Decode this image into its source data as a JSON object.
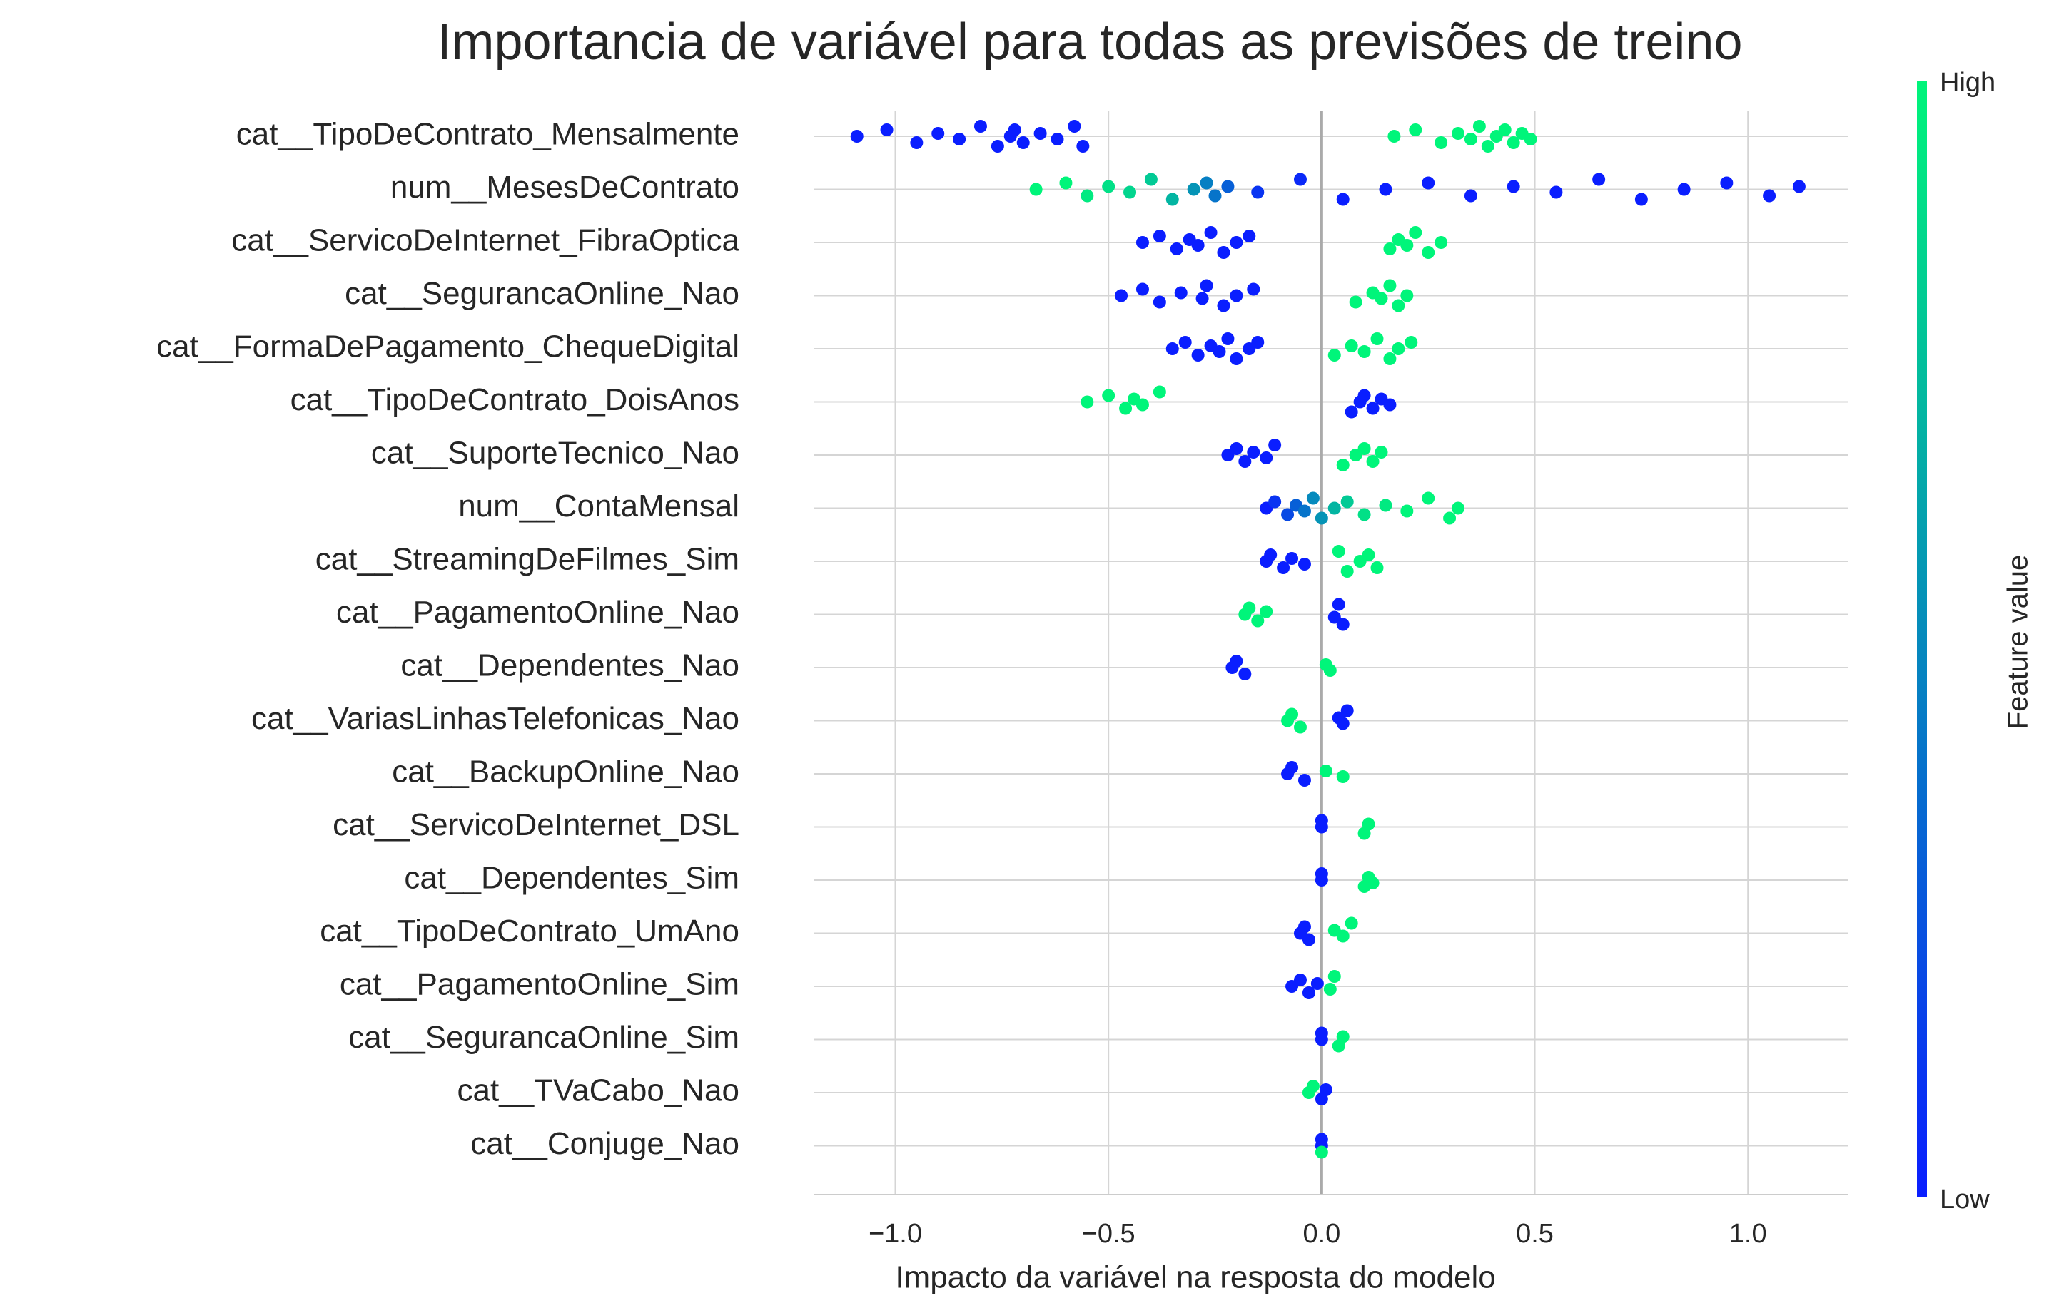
{
  "chart_data": {
    "type": "beeswarm",
    "title": "Importancia de variável para todas as previsões de treino",
    "x_label": "Impacto da variável na resposta do modelo",
    "xlim": [
      -1.19,
      1.234
    ],
    "xticks": [
      {
        "value": -1,
        "label": "−1.0"
      },
      {
        "value": -0.5,
        "label": "−0.5"
      },
      {
        "value": 0,
        "label": "0.0"
      },
      0.5,
      {
        "value": 1,
        "label": "1.0"
      }
    ],
    "grid": true,
    "colorbar": {
      "label": "Feature value",
      "low_label": "Low",
      "high_label": "High",
      "low_color": "#0a1eff",
      "high_color": "#00f57a"
    },
    "features": [
      {
        "name": "cat__TipoDeContrato_Mensalmente",
        "shap": [
          -1.09,
          -1.02,
          -0.95,
          -0.9,
          -0.85,
          -0.8,
          -0.76,
          -0.73,
          -0.72,
          -0.7,
          -0.66,
          -0.62,
          -0.58,
          -0.56,
          0.17,
          0.22,
          0.28,
          0.32,
          0.35,
          0.37,
          0.39,
          0.41,
          0.43,
          0.45,
          0.47,
          0.49
        ],
        "feature_value": [
          0,
          0,
          0,
          0,
          0,
          0,
          0,
          0,
          0,
          0,
          0,
          0,
          0,
          0,
          1,
          1,
          1,
          1,
          1,
          1,
          1,
          1,
          1,
          1,
          1,
          1
        ]
      },
      {
        "name": "num__MesesDeContrato",
        "shap": [
          -0.67,
          -0.6,
          -0.55,
          -0.5,
          -0.45,
          -0.4,
          -0.35,
          -0.3,
          -0.27,
          -0.25,
          -0.22,
          -0.15,
          -0.05,
          0.05,
          0.15,
          0.25,
          0.35,
          0.45,
          0.55,
          0.65,
          0.75,
          0.85,
          0.95,
          1.05,
          1.12
        ],
        "feature_value": [
          1,
          1,
          0.95,
          0.9,
          0.85,
          0.8,
          0.7,
          0.55,
          0.45,
          0.4,
          0.3,
          0.1,
          0.05,
          0,
          0,
          0,
          0,
          0,
          0,
          0,
          0,
          0,
          0,
          0,
          0
        ]
      },
      {
        "name": "cat__ServicoDeInternet_FibraOptica",
        "shap": [
          -0.42,
          -0.38,
          -0.34,
          -0.31,
          -0.29,
          -0.26,
          -0.23,
          -0.2,
          -0.17,
          0.16,
          0.18,
          0.2,
          0.22,
          0.25,
          0.28
        ],
        "feature_value": [
          0,
          0,
          0,
          0,
          0,
          0,
          0,
          0,
          0,
          1,
          1,
          1,
          1,
          1,
          1
        ]
      },
      {
        "name": "cat__SegurancaOnline_Nao",
        "shap": [
          -0.47,
          -0.42,
          -0.38,
          -0.33,
          -0.28,
          -0.27,
          -0.23,
          -0.2,
          -0.16,
          0.08,
          0.12,
          0.14,
          0.16,
          0.18,
          0.2
        ],
        "feature_value": [
          0,
          0,
          0,
          0,
          0,
          0,
          0,
          0,
          0,
          1,
          1,
          1,
          1,
          1,
          1
        ]
      },
      {
        "name": "cat__FormaDePagamento_ChequeDigital",
        "shap": [
          -0.35,
          -0.32,
          -0.29,
          -0.26,
          -0.24,
          -0.22,
          -0.2,
          -0.17,
          -0.15,
          0.03,
          0.07,
          0.1,
          0.13,
          0.16,
          0.18,
          0.21
        ],
        "feature_value": [
          0,
          0,
          0,
          0,
          0,
          0,
          0,
          0,
          0,
          1,
          1,
          1,
          1,
          1,
          1,
          1
        ]
      },
      {
        "name": "cat__TipoDeContrato_DoisAnos",
        "shap": [
          -0.55,
          -0.5,
          -0.46,
          -0.44,
          -0.42,
          -0.38,
          0.07,
          0.09,
          0.1,
          0.12,
          0.14,
          0.16
        ],
        "feature_value": [
          1,
          1,
          1,
          1,
          1,
          1,
          0,
          0,
          0,
          0,
          0,
          0
        ]
      },
      {
        "name": "cat__SuporteTecnico_Nao",
        "shap": [
          -0.22,
          -0.2,
          -0.18,
          -0.16,
          -0.13,
          -0.11,
          0.05,
          0.08,
          0.1,
          0.12,
          0.14
        ],
        "feature_value": [
          0,
          0,
          0,
          0,
          0,
          0,
          1,
          1,
          1,
          1,
          1
        ]
      },
      {
        "name": "num__ContaMensal",
        "shap": [
          -0.13,
          -0.11,
          -0.08,
          -0.06,
          -0.04,
          -0.02,
          0,
          0.03,
          0.06,
          0.1,
          0.15,
          0.2,
          0.25,
          0.3,
          0.32
        ],
        "feature_value": [
          0,
          0.1,
          0.2,
          0.3,
          0.4,
          0.5,
          0.55,
          0.7,
          0.8,
          0.9,
          0.95,
          1,
          1,
          1,
          1
        ]
      },
      {
        "name": "cat__StreamingDeFilmes_Sim",
        "shap": [
          -0.13,
          -0.12,
          -0.09,
          -0.07,
          -0.04,
          0.04,
          0.06,
          0.09,
          0.11,
          0.13
        ],
        "feature_value": [
          0,
          0,
          0,
          0,
          0,
          1,
          1,
          1,
          1,
          1
        ]
      },
      {
        "name": "cat__PagamentoOnline_Nao",
        "shap": [
          -0.18,
          -0.17,
          -0.15,
          -0.13,
          0.03,
          0.04,
          0.05
        ],
        "feature_value": [
          1,
          1,
          1,
          1,
          0,
          0,
          0
        ]
      },
      {
        "name": "cat__Dependentes_Nao",
        "shap": [
          -0.21,
          -0.2,
          -0.18,
          0.01,
          0.02
        ],
        "feature_value": [
          0,
          0,
          0,
          1,
          1
        ]
      },
      {
        "name": "cat__VariasLinhasTelefonicas_Nao",
        "shap": [
          -0.08,
          -0.07,
          -0.05,
          0.04,
          0.05,
          0.06
        ],
        "feature_value": [
          1,
          1,
          1,
          0,
          0,
          0
        ]
      },
      {
        "name": "cat__BackupOnline_Nao",
        "shap": [
          -0.08,
          -0.07,
          -0.04,
          0.01,
          0.05
        ],
        "feature_value": [
          0,
          0,
          0,
          1,
          1
        ]
      },
      {
        "name": "cat__ServicoDeInternet_DSL",
        "shap": [
          0,
          0,
          0.1,
          0.11
        ],
        "feature_value": [
          0,
          0,
          1,
          1
        ]
      },
      {
        "name": "cat__Dependentes_Sim",
        "shap": [
          0,
          0,
          0.1,
          0.11,
          0.12
        ],
        "feature_value": [
          0,
          0,
          1,
          1,
          1
        ]
      },
      {
        "name": "cat__TipoDeContrato_UmAno",
        "shap": [
          -0.05,
          -0.04,
          -0.03,
          0.03,
          0.05,
          0.07
        ],
        "feature_value": [
          0,
          0,
          0,
          1,
          1,
          1
        ]
      },
      {
        "name": "cat__PagamentoOnline_Sim",
        "shap": [
          -0.07,
          -0.05,
          -0.03,
          -0.01,
          0.02,
          0.03
        ],
        "feature_value": [
          0,
          0,
          0,
          0,
          1,
          1
        ]
      },
      {
        "name": "cat__SegurancaOnline_Sim",
        "shap": [
          0,
          0,
          0.04,
          0.05
        ],
        "feature_value": [
          0,
          0,
          1,
          1
        ]
      },
      {
        "name": "cat__TVaCabo_Nao",
        "shap": [
          -0.03,
          -0.02,
          0,
          0.01
        ],
        "feature_value": [
          1,
          1,
          0,
          0
        ]
      },
      {
        "name": "cat__Conjuge_Nao",
        "shap": [
          0,
          0,
          0
        ],
        "feature_value": [
          0,
          0,
          1
        ]
      }
    ]
  }
}
